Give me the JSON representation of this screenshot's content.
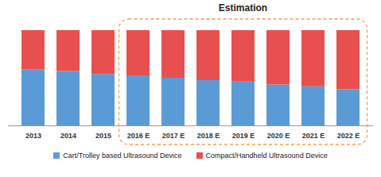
{
  "chart_data": {
    "type": "bar",
    "stacked": true,
    "tick_labels": "x",
    "grid": false,
    "categories": [
      "2013",
      "2014",
      "2015",
      "2016 E",
      "2017 E",
      "2018 E",
      "2019 E",
      "2020 E",
      "2021 E",
      "2022 E"
    ],
    "series": [
      {
        "name": "Cart/Trolley based Ultrasound Device",
        "color": "#5b9bd5",
        "values": [
          59,
          57,
          54,
          52.5,
          50,
          47.5,
          46,
          43,
          41,
          38
        ]
      },
      {
        "name": "Compact/Handheld Ultrasound Device",
        "color": "#e8504f",
        "values": [
          41,
          43,
          46,
          47.5,
          50,
          52.5,
          54,
          57,
          59,
          62
        ]
      }
    ],
    "ylim": [
      0,
      100
    ],
    "annotation": {
      "text": "Estimation",
      "from": "2016 E",
      "to": "2022 E"
    },
    "legend": "bottom"
  }
}
